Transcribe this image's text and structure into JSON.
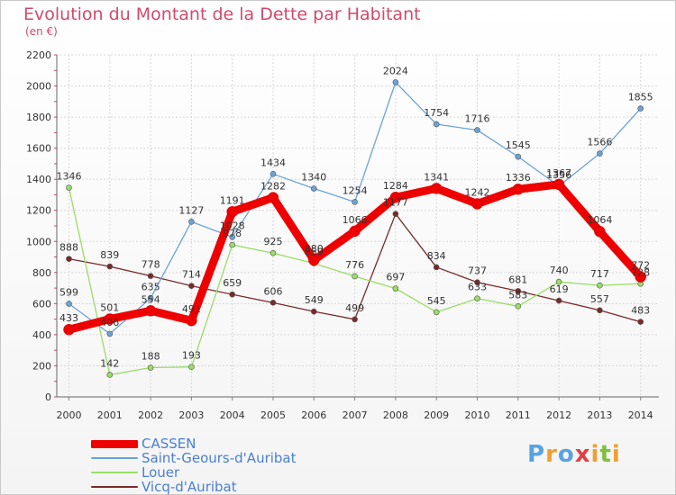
{
  "header": {
    "title": "Evolution du Montant de la Dette par Habitant",
    "unit": "(en €)"
  },
  "logo": {
    "text": "Proxiti",
    "letters": [
      "P",
      "r",
      "o",
      "x",
      "i",
      "t",
      "i"
    ],
    "colors": [
      "#5aa2e0",
      "#f0a030",
      "#5aa2e0",
      "#e04040",
      "#f0a030",
      "#80c040",
      "#f0a030"
    ]
  },
  "chart_data": {
    "type": "line",
    "title": "Evolution du Montant de la Dette par Habitant",
    "ylabel": "(en €)",
    "x": [
      "2000",
      "2001",
      "2002",
      "2003",
      "2004",
      "2005",
      "2006",
      "2007",
      "2008",
      "2009",
      "2010",
      "2011",
      "2012",
      "2013",
      "2014"
    ],
    "ylim": [
      0,
      2200
    ],
    "yticks": [
      0,
      200,
      400,
      600,
      800,
      1000,
      1200,
      1400,
      1600,
      1800,
      2000,
      2200
    ],
    "grid": true,
    "legend_position": "bottom-left",
    "series": [
      {
        "name": "CASSEN",
        "color": "#ee0000",
        "values": [
          433,
          501,
          554,
          491,
          1191,
          1282,
          880,
          1066,
          1284,
          1341,
          1242,
          1336,
          1367,
          1064,
          772
        ]
      },
      {
        "name": "Saint-Geours-d'Auribat",
        "color": "#6aa3d8",
        "values": [
          599,
          406,
          635,
          1127,
          1028,
          1434,
          1340,
          1254,
          2024,
          1754,
          1716,
          1545,
          1356,
          1566,
          1855
        ]
      },
      {
        "name": "Louer",
        "color": "#99dd66",
        "values": [
          1346,
          142,
          188,
          193,
          978,
          925,
          859,
          776,
          697,
          545,
          633,
          583,
          740,
          717,
          728
        ]
      },
      {
        "name": "Vicq-d'Auribat",
        "color": "#7a2a2a",
        "values": [
          888,
          839,
          778,
          714,
          659,
          606,
          549,
          499,
          1177,
          834,
          737,
          681,
          619,
          557,
          483
        ]
      }
    ]
  }
}
